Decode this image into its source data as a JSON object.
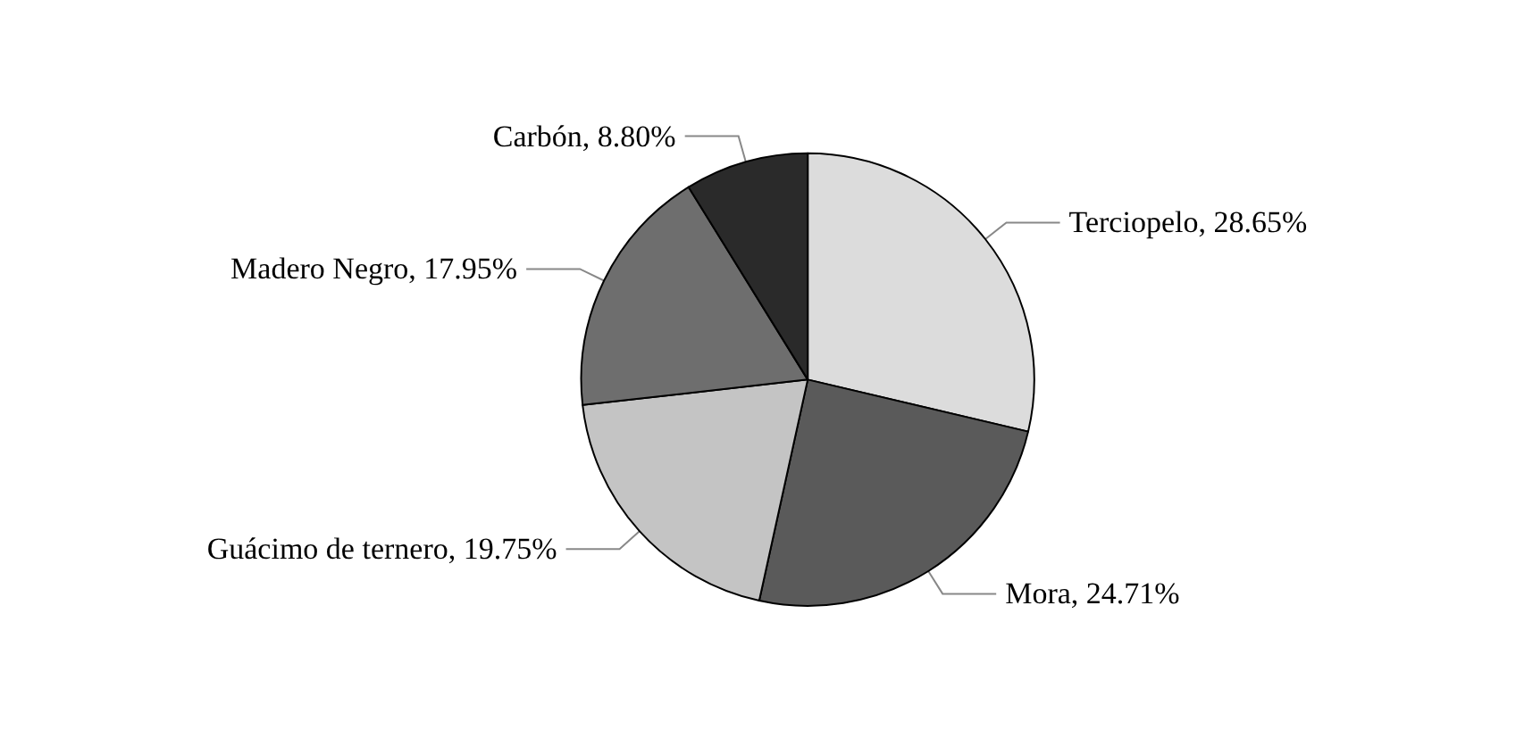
{
  "chart_data": {
    "type": "pie",
    "categories": [
      "Terciopelo",
      "Mora",
      "Guácimo de ternero",
      "Madero Negro",
      "Carbón"
    ],
    "values": [
      28.65,
      24.71,
      19.75,
      17.95,
      8.8
    ],
    "value_labels": [
      "28.65%",
      "24.71%",
      "19.75%",
      "17.95%",
      "8.80%"
    ],
    "colors": [
      "#dcdcdc",
      "#5a5a5a",
      "#c4c4c4",
      "#6e6e6e",
      "#2a2a2a"
    ],
    "legend": false
  }
}
